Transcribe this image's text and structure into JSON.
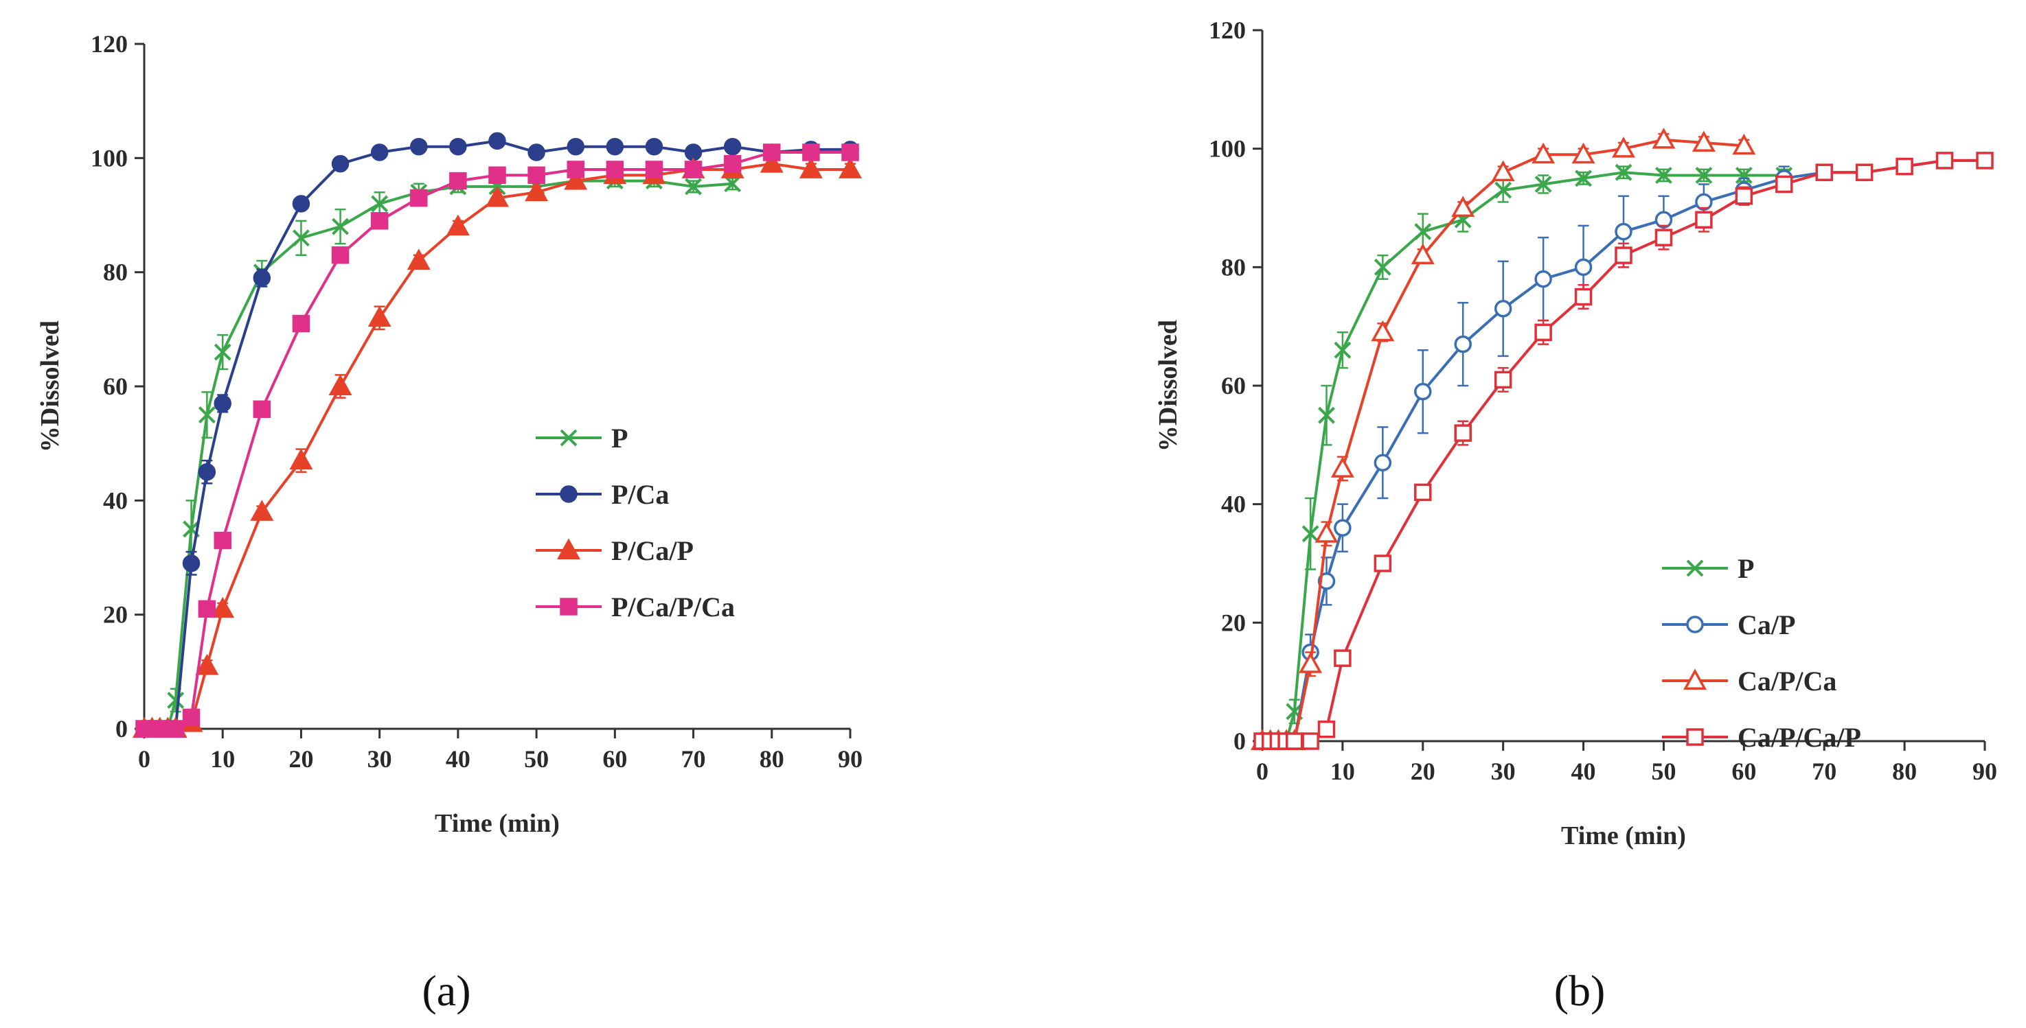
{
  "chart_data": [
    {
      "type": "line",
      "panel_label": "(a)",
      "xlabel": "Time (min)",
      "ylabel": "%Dissolved",
      "xlim": [
        0,
        90
      ],
      "ylim": [
        0,
        120
      ],
      "xticks": [
        0,
        10,
        20,
        30,
        40,
        50,
        60,
        70,
        80,
        90
      ],
      "yticks": [
        0,
        20,
        40,
        60,
        80,
        100,
        120
      ],
      "legend_position": "center-right",
      "series": [
        {
          "name": "P",
          "color": "#3aa84a",
          "marker": "x",
          "x": [
            0,
            1,
            2,
            3,
            4,
            6,
            8,
            10,
            15,
            20,
            25,
            30,
            35,
            40,
            45,
            50,
            55,
            60,
            65,
            70,
            75
          ],
          "y": [
            0,
            0,
            0,
            0,
            5,
            35,
            55,
            66,
            80,
            86,
            88,
            92,
            94,
            95,
            95,
            95,
            96,
            96,
            96,
            95,
            95.5
          ],
          "err": [
            0,
            0,
            0,
            0,
            2,
            5,
            4,
            3,
            2,
            3,
            3,
            2,
            1.5,
            1,
            1,
            1,
            1,
            1,
            1,
            1,
            1
          ]
        },
        {
          "name": "P/Ca",
          "color": "#2b3f8c",
          "marker": "circle-filled",
          "x": [
            0,
            1,
            2,
            3,
            4,
            6,
            8,
            10,
            15,
            20,
            25,
            30,
            35,
            40,
            45,
            50,
            55,
            60,
            65,
            70,
            75,
            80,
            85,
            90
          ],
          "y": [
            0,
            0,
            0,
            0,
            0,
            29,
            45,
            57,
            79,
            92,
            99,
            101,
            102,
            102,
            103,
            101,
            102,
            102,
            102,
            101,
            102,
            101,
            101.5,
            101.5
          ],
          "err": [
            0,
            0,
            0,
            0,
            0,
            2,
            2,
            1.5,
            1.5,
            1,
            1,
            1,
            1,
            1,
            1,
            1,
            1,
            1,
            1,
            1,
            1,
            1,
            1,
            1
          ]
        },
        {
          "name": "P/Ca/P",
          "color": "#e8412a",
          "marker": "triangle-filled",
          "x": [
            0,
            1,
            2,
            3,
            4,
            6,
            8,
            10,
            15,
            20,
            25,
            30,
            35,
            40,
            45,
            50,
            55,
            60,
            65,
            70,
            75,
            80,
            85,
            90
          ],
          "y": [
            0,
            0,
            0,
            0,
            0,
            1,
            11,
            21,
            38,
            47,
            60,
            72,
            82,
            88,
            93,
            94,
            96,
            97,
            97,
            98,
            98,
            99,
            98,
            98
          ],
          "err": [
            0,
            0,
            0,
            0,
            0,
            0.5,
            1,
            1,
            1,
            2,
            2,
            2,
            1,
            1,
            1,
            1,
            1,
            1,
            1,
            1,
            1,
            1,
            1,
            1
          ]
        },
        {
          "name": "P/Ca/P/Ca",
          "color": "#e0308a",
          "marker": "square-filled",
          "x": [
            0,
            1,
            2,
            3,
            4,
            6,
            8,
            10,
            15,
            20,
            25,
            30,
            35,
            40,
            45,
            50,
            55,
            60,
            65,
            70,
            75,
            80,
            85,
            90
          ],
          "y": [
            0,
            0,
            0,
            0,
            0,
            2,
            21,
            33,
            56,
            71,
            83,
            89,
            93,
            96,
            97,
            97,
            98,
            98,
            98,
            98,
            99,
            101,
            101,
            101
          ],
          "err": [
            0,
            0,
            0,
            0,
            0,
            0.5,
            1,
            1,
            1,
            1,
            1,
            1,
            1,
            1,
            1,
            1,
            1,
            1,
            1,
            1,
            1,
            1,
            1,
            1
          ]
        }
      ]
    },
    {
      "type": "line",
      "panel_label": "(b)",
      "xlabel": "Time (min)",
      "ylabel": "%Dissolved",
      "xlim": [
        0,
        90
      ],
      "ylim": [
        0,
        120
      ],
      "xticks": [
        0,
        10,
        20,
        30,
        40,
        50,
        60,
        70,
        80,
        90
      ],
      "yticks": [
        0,
        20,
        40,
        60,
        80,
        100,
        120
      ],
      "legend_position": "center-right",
      "series": [
        {
          "name": "P",
          "color": "#3aa84a",
          "marker": "x",
          "x": [
            0,
            1,
            2,
            3,
            4,
            6,
            8,
            10,
            15,
            20,
            25,
            30,
            35,
            40,
            45,
            50,
            55,
            60,
            65
          ],
          "y": [
            0,
            0,
            0,
            0,
            5,
            35,
            55,
            66,
            80,
            86,
            88,
            93,
            94,
            95,
            96,
            95.5,
            95.5,
            95.5,
            95.5
          ],
          "err": [
            0,
            0,
            0,
            0,
            2,
            6,
            5,
            3,
            2,
            3,
            2,
            2,
            1.5,
            1,
            1,
            1,
            1,
            1,
            1
          ]
        },
        {
          "name": "Ca/P",
          "color": "#3a6fb5",
          "marker": "circle-open",
          "x": [
            0,
            1,
            2,
            3,
            4,
            6,
            8,
            10,
            15,
            20,
            25,
            30,
            35,
            40,
            45,
            50,
            55,
            60,
            65,
            70,
            75,
            80,
            85,
            90
          ],
          "y": [
            0,
            0,
            0,
            0,
            0,
            15,
            27,
            36,
            47,
            59,
            67,
            73,
            78,
            80,
            86,
            88,
            91,
            93,
            95,
            96,
            96,
            97,
            98,
            98
          ],
          "err": [
            0,
            0,
            0,
            0,
            0,
            3,
            4,
            4,
            6,
            7,
            7,
            8,
            7,
            7,
            6,
            4,
            3,
            2,
            2,
            1,
            1,
            1,
            1,
            1
          ]
        },
        {
          "name": "Ca/P/Ca",
          "color": "#e8412a",
          "marker": "triangle-open",
          "x": [
            0,
            1,
            2,
            3,
            4,
            6,
            8,
            10,
            15,
            20,
            25,
            30,
            35,
            40,
            45,
            50,
            55,
            60
          ],
          "y": [
            0,
            0,
            0,
            0,
            0,
            13,
            35,
            46,
            69,
            82,
            90,
            96,
            99,
            99,
            100,
            101.5,
            101,
            100.5
          ],
          "err": [
            0,
            0,
            0,
            0,
            0,
            2,
            2,
            2,
            1.5,
            1,
            1,
            1,
            1,
            1,
            1,
            1,
            1,
            1
          ]
        },
        {
          "name": "Ca/P/Ca/P",
          "color": "#e0303a",
          "marker": "square-open",
          "x": [
            0,
            1,
            2,
            3,
            4,
            6,
            8,
            10,
            15,
            20,
            25,
            30,
            35,
            40,
            45,
            50,
            55,
            60,
            65,
            70,
            75,
            80,
            85,
            90
          ],
          "y": [
            0,
            0,
            0,
            0,
            0,
            0,
            2,
            14,
            30,
            42,
            52,
            61,
            69,
            75,
            82,
            85,
            88,
            92,
            94,
            96,
            96,
            97,
            98,
            98
          ],
          "err": [
            0,
            0,
            0,
            0,
            0,
            0,
            0.5,
            1,
            1,
            1,
            2,
            2,
            2,
            2,
            2,
            2,
            2,
            1.5,
            1,
            1,
            1,
            1,
            1,
            1
          ]
        }
      ]
    }
  ]
}
